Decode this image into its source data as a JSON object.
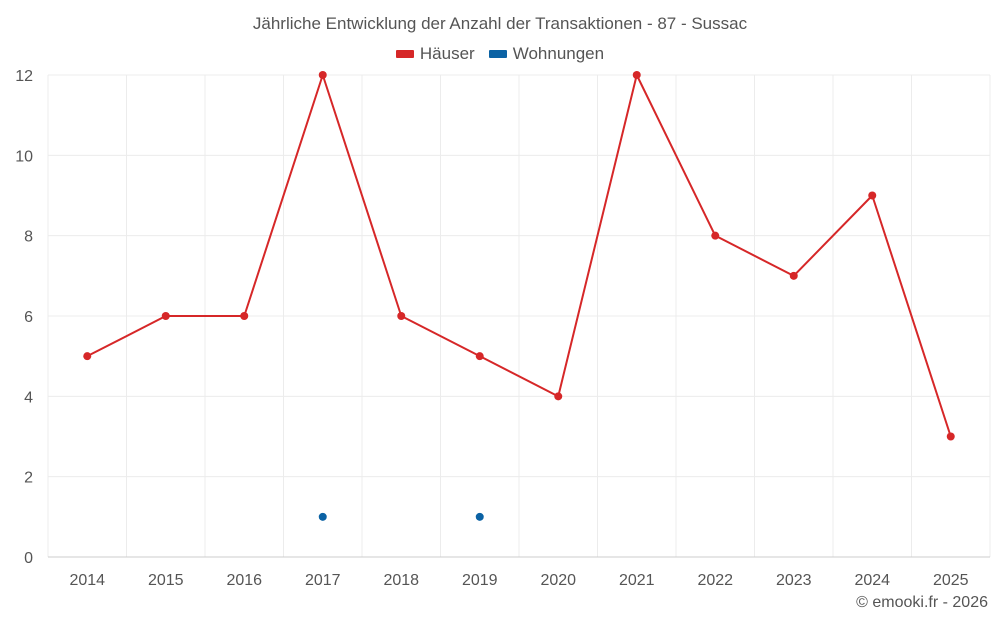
{
  "chart_data": {
    "type": "line",
    "title": "Jährliche Entwicklung der Anzahl der Transaktionen - 87 - Sussac",
    "categories": [
      "2014",
      "2015",
      "2016",
      "2017",
      "2018",
      "2019",
      "2020",
      "2021",
      "2022",
      "2023",
      "2024",
      "2025"
    ],
    "series": [
      {
        "name": "Häuser",
        "color": "#d62728",
        "values": [
          5,
          6,
          6,
          12,
          6,
          5,
          4,
          12,
          8,
          7,
          9,
          3
        ],
        "line": true
      },
      {
        "name": "Wohnungen",
        "color": "#0b62a4",
        "values": [
          null,
          null,
          null,
          1,
          null,
          1,
          null,
          null,
          null,
          null,
          null,
          null
        ],
        "line": false
      }
    ],
    "ylim": [
      0,
      12
    ],
    "yticks": [
      0,
      2,
      4,
      6,
      8,
      10,
      12
    ],
    "grid": true,
    "legend_position": "top-center"
  },
  "credit": "© emooki.fr - 2026"
}
